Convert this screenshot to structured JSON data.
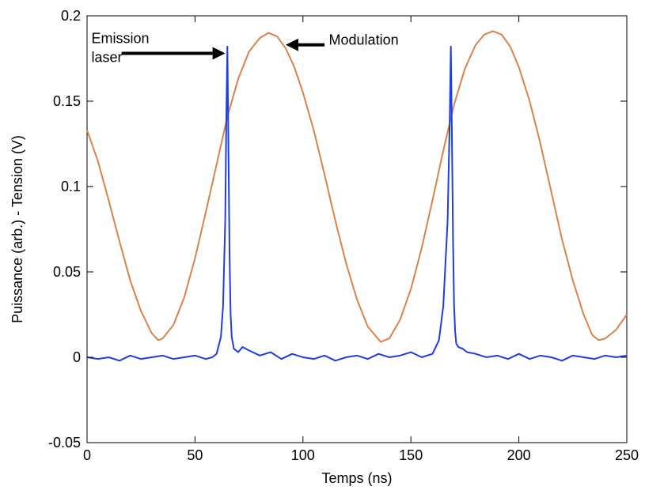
{
  "chart_data": {
    "type": "line",
    "title": "",
    "xlabel": "Temps (ns)",
    "ylabel": "Puissance (arb.) - Tension (V)",
    "xlim": [
      0,
      250
    ],
    "ylim": [
      -0.05,
      0.2
    ],
    "xticks": [
      0,
      50,
      100,
      150,
      200,
      250
    ],
    "xtick_labels": [
      "0",
      "50",
      "100",
      "150",
      "200",
      "250"
    ],
    "yticks": [
      -0.05,
      0,
      0.05,
      0.1,
      0.15,
      0.2
    ],
    "ytick_labels": [
      "-0.05",
      "0",
      "0.05",
      "0.1",
      "0.15",
      "0.2"
    ],
    "grid": false,
    "legend": "none",
    "series": [
      {
        "color": "#d9844a",
        "x": [
          0,
          5,
          10,
          15,
          20,
          25,
          30,
          33,
          35,
          40,
          45,
          50,
          55,
          60,
          65,
          70,
          75,
          80,
          84,
          88,
          92,
          96,
          100,
          105,
          110,
          115,
          120,
          125,
          130,
          136,
          140,
          145,
          150,
          155,
          160,
          165,
          170,
          175,
          180,
          184,
          188,
          192,
          196,
          200,
          205,
          210,
          215,
          220,
          225,
          230,
          234,
          237,
          240,
          245,
          250
        ],
        "y": [
          0.133,
          0.115,
          0.092,
          0.068,
          0.045,
          0.027,
          0.014,
          0.01,
          0.011,
          0.019,
          0.035,
          0.058,
          0.085,
          0.113,
          0.141,
          0.163,
          0.179,
          0.187,
          0.19,
          0.188,
          0.181,
          0.17,
          0.155,
          0.133,
          0.107,
          0.08,
          0.055,
          0.034,
          0.018,
          0.009,
          0.011,
          0.022,
          0.04,
          0.064,
          0.092,
          0.121,
          0.148,
          0.169,
          0.183,
          0.189,
          0.191,
          0.189,
          0.182,
          0.17,
          0.15,
          0.125,
          0.097,
          0.069,
          0.045,
          0.025,
          0.013,
          0.01,
          0.011,
          0.016,
          0.025
        ]
      },
      {
        "color": "#1f3de0",
        "x": [
          0,
          5,
          10,
          15,
          20,
          25,
          30,
          35,
          40,
          45,
          50,
          55,
          58,
          60,
          62,
          63,
          64,
          64.5,
          65,
          65.5,
          66,
          66.5,
          67,
          68,
          70,
          72,
          75,
          80,
          85,
          90,
          95,
          100,
          105,
          110,
          115,
          120,
          125,
          130,
          135,
          140,
          145,
          150,
          155,
          160,
          163,
          165,
          167,
          168,
          168.5,
          169,
          169.5,
          170,
          170.5,
          171,
          172,
          174,
          176,
          180,
          185,
          190,
          195,
          200,
          205,
          210,
          215,
          220,
          225,
          230,
          235,
          240,
          245,
          250
        ],
        "y": [
          0.0,
          -0.001,
          0.0,
          -0.002,
          0.001,
          -0.001,
          0.0,
          0.001,
          -0.001,
          0.0,
          0.001,
          -0.001,
          0.0,
          0.002,
          0.012,
          0.03,
          0.08,
          0.14,
          0.182,
          0.12,
          0.06,
          0.025,
          0.012,
          0.005,
          0.003,
          0.006,
          0.004,
          0.001,
          0.003,
          -0.001,
          0.002,
          0.0,
          -0.001,
          0.001,
          -0.002,
          0.0,
          0.001,
          -0.001,
          0.002,
          0.0,
          0.001,
          0.003,
          0.0,
          0.002,
          0.01,
          0.03,
          0.08,
          0.14,
          0.182,
          0.13,
          0.07,
          0.03,
          0.015,
          0.008,
          0.006,
          0.005,
          0.003,
          0.002,
          0.0,
          0.001,
          -0.001,
          0.002,
          -0.001,
          0.001,
          0.0,
          -0.002,
          0.001,
          0.0,
          -0.001,
          0.001,
          0.0,
          0.001
        ]
      }
    ],
    "annotations": [
      {
        "lines": [
          "Emission",
          "laser"
        ],
        "text_x": 2,
        "text_y": 0.184,
        "arrow_from": [
          16,
          0.178
        ],
        "arrow_to": [
          64,
          0.178
        ]
      },
      {
        "lines": [
          "Modulation"
        ],
        "text_x": 112,
        "text_y": 0.183,
        "arrow_from": [
          110,
          0.183
        ],
        "arrow_to": [
          92,
          0.183
        ]
      }
    ]
  }
}
